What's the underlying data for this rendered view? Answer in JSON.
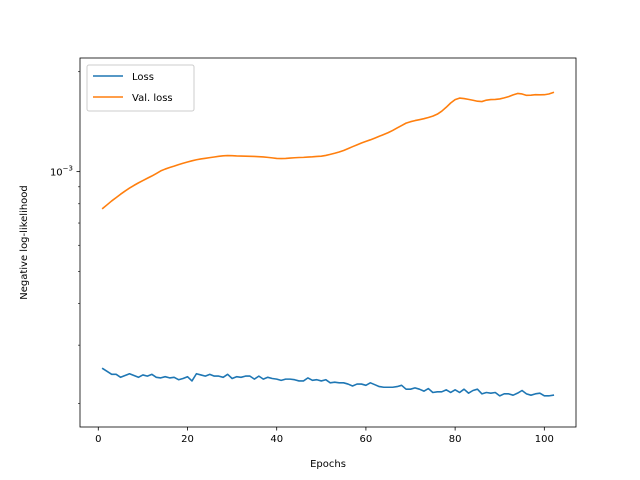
{
  "chart_data": {
    "type": "line",
    "title": "",
    "xlabel": "Epochs",
    "ylabel": "Negative log-likelihood",
    "xlim": [
      -4.1,
      107.1
    ],
    "ylim": [
      0.00017,
      0.0022
    ],
    "yscale": "log",
    "xticks": [
      0,
      20,
      40,
      60,
      80,
      100
    ],
    "yticks": [
      {
        "value": 0.001,
        "base": "10",
        "exp": "−3"
      }
    ],
    "grid": false,
    "legend_position": "top-left",
    "series": [
      {
        "name": "Loss",
        "color": "#1f77b4",
        "x": [
          1,
          2,
          3,
          4,
          5,
          6,
          7,
          8,
          9,
          10,
          11,
          12,
          13,
          14,
          15,
          16,
          17,
          18,
          19,
          20,
          21,
          22,
          23,
          24,
          25,
          26,
          27,
          28,
          29,
          30,
          31,
          32,
          33,
          34,
          35,
          36,
          37,
          38,
          39,
          40,
          41,
          42,
          43,
          44,
          45,
          46,
          47,
          48,
          49,
          50,
          51,
          52,
          53,
          54,
          55,
          56,
          57,
          58,
          59,
          60,
          61,
          62,
          63,
          64,
          65,
          66,
          67,
          68,
          69,
          70,
          71,
          72,
          73,
          74,
          75,
          76,
          77,
          78,
          79,
          80,
          81,
          82,
          83,
          84,
          85,
          86,
          87,
          88,
          89,
          90,
          91,
          92,
          93,
          94,
          95,
          96,
          97,
          98,
          99,
          100,
          101,
          102
        ],
        "values": [
          0.000255,
          0.00025,
          0.000245,
          0.000245,
          0.00024,
          0.000243,
          0.000246,
          0.000243,
          0.00024,
          0.000244,
          0.000242,
          0.000245,
          0.00024,
          0.000239,
          0.000241,
          0.000239,
          0.00024,
          0.000236,
          0.000238,
          0.000241,
          0.000234,
          0.000246,
          0.000244,
          0.000242,
          0.000245,
          0.000242,
          0.000242,
          0.00024,
          0.000245,
          0.000238,
          0.000241,
          0.00024,
          0.000242,
          0.000242,
          0.000237,
          0.000242,
          0.000237,
          0.00024,
          0.000238,
          0.000237,
          0.000235,
          0.000237,
          0.000237,
          0.000236,
          0.000234,
          0.000234,
          0.000239,
          0.000235,
          0.000236,
          0.000234,
          0.000236,
          0.000231,
          0.000232,
          0.000231,
          0.000231,
          0.000229,
          0.000226,
          0.000229,
          0.000229,
          0.000227,
          0.000231,
          0.000228,
          0.000225,
          0.000224,
          0.000224,
          0.000224,
          0.000225,
          0.000227,
          0.000221,
          0.000221,
          0.000223,
          0.000221,
          0.000218,
          0.000222,
          0.000216,
          0.000217,
          0.000217,
          0.00022,
          0.000216,
          0.00022,
          0.000216,
          0.000221,
          0.000215,
          0.000219,
          0.000221,
          0.000214,
          0.000216,
          0.000215,
          0.000216,
          0.000211,
          0.000214,
          0.000214,
          0.000212,
          0.000215,
          0.000219,
          0.000214,
          0.000212,
          0.000214,
          0.000215,
          0.000211,
          0.000211,
          0.000212
        ]
      },
      {
        "name": "Val. loss",
        "color": "#ff7f0e",
        "x": [
          1,
          2,
          3,
          4,
          5,
          6,
          7,
          8,
          9,
          10,
          11,
          12,
          13,
          14,
          15,
          16,
          17,
          18,
          19,
          20,
          21,
          22,
          23,
          24,
          25,
          26,
          27,
          28,
          29,
          30,
          31,
          32,
          33,
          34,
          35,
          36,
          37,
          38,
          39,
          40,
          41,
          42,
          43,
          44,
          45,
          46,
          47,
          48,
          49,
          50,
          51,
          52,
          53,
          54,
          55,
          56,
          57,
          58,
          59,
          60,
          61,
          62,
          63,
          64,
          65,
          66,
          67,
          68,
          69,
          70,
          71,
          72,
          73,
          74,
          75,
          76,
          77,
          78,
          79,
          80,
          81,
          82,
          83,
          84,
          85,
          86,
          87,
          88,
          89,
          90,
          91,
          92,
          93,
          94,
          95,
          96,
          97,
          98,
          99,
          100,
          101,
          102
        ],
        "values": [
          0.000775,
          0.000795,
          0.000816,
          0.000835,
          0.000855,
          0.000874,
          0.000892,
          0.000909,
          0.000925,
          0.00094,
          0.000955,
          0.00097,
          0.000987,
          0.001005,
          0.001018,
          0.001029,
          0.001039,
          0.00105,
          0.00106,
          0.001069,
          0.001078,
          0.001086,
          0.001092,
          0.001097,
          0.001102,
          0.001107,
          0.001112,
          0.001116,
          0.001118,
          0.001117,
          0.001115,
          0.001114,
          0.001113,
          0.001112,
          0.001111,
          0.001109,
          0.001107,
          0.001104,
          0.0011,
          0.001096,
          0.001095,
          0.001096,
          0.001099,
          0.001101,
          0.001103,
          0.001104,
          0.001106,
          0.001108,
          0.001111,
          0.001113,
          0.001119,
          0.001127,
          0.001136,
          0.001146,
          0.001158,
          0.001173,
          0.001189,
          0.001204,
          0.00122,
          0.001234,
          0.001247,
          0.001262,
          0.001278,
          0.001294,
          0.001311,
          0.001331,
          0.001354,
          0.001377,
          0.0014,
          0.001414,
          0.001425,
          0.001434,
          0.001444,
          0.001456,
          0.00147,
          0.00149,
          0.001521,
          0.001563,
          0.00161,
          0.001648,
          0.001666,
          0.00166,
          0.001651,
          0.001641,
          0.00163,
          0.001626,
          0.001642,
          0.001649,
          0.00165,
          0.001656,
          0.001668,
          0.001683,
          0.001703,
          0.00172,
          0.001714,
          0.001698,
          0.0017,
          0.001705,
          0.001704,
          0.001705,
          0.001714,
          0.001732
        ]
      }
    ]
  }
}
